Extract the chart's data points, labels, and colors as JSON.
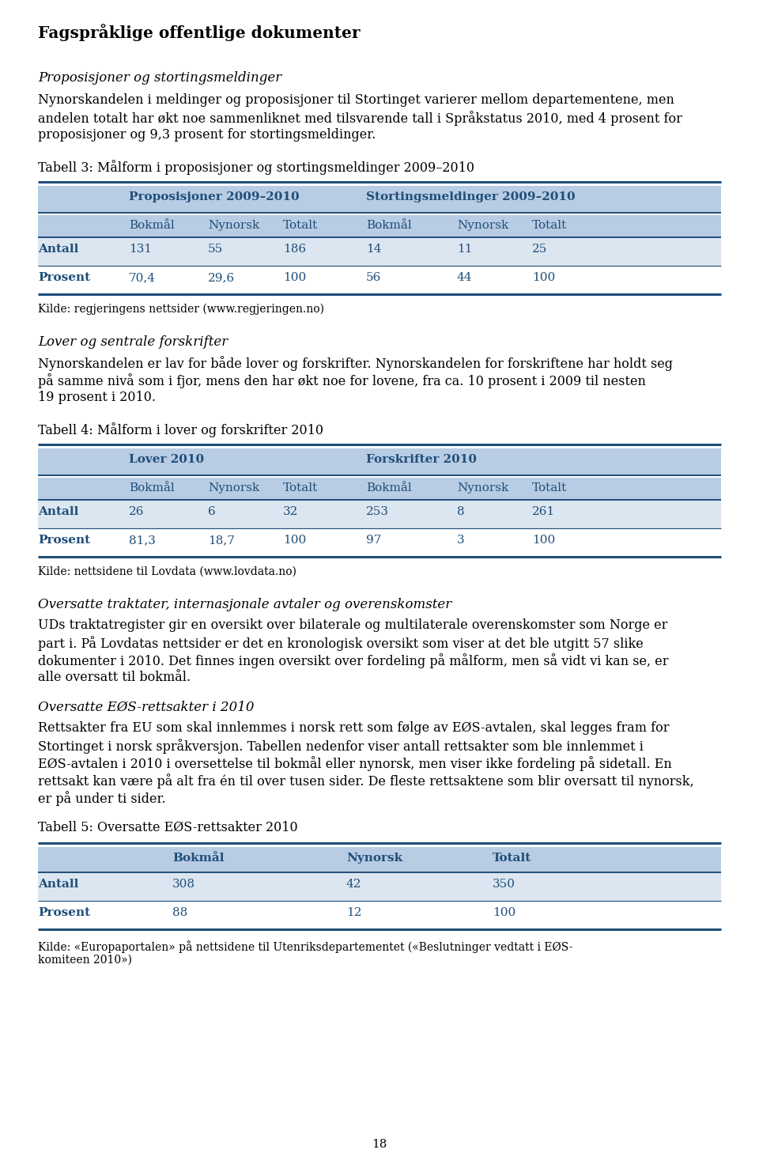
{
  "page_bg": "#ffffff",
  "text_color": "#000000",
  "blue_header": "#1f4e79",
  "blue_text": "#1f4e79",
  "table_header_bg": "#b8cce4",
  "table_row_bg1": "#dce6f1",
  "table_row_bg2": "#ffffff",
  "table_border_color": "#1f4e79",
  "main_title": "Fagspråklige offentlige dokumenter",
  "section1_title": "Proposisjoner og stortingsmeldinger",
  "section1_body": "Nynorskandelen i meldinger og proposisjoner til Stortinget varierer mellom departementene, men\nandelen totalt har økt noe sammenliknet med tilsvarende tall i Språkstatus 2010, med 4 prosent for\nproposisjoner og 9,3 prosent for stortingsmeldinger.",
  "tabell3_title": "Tabell 3: Målform i proposisjoner og stortingsmeldinger 2009–2010",
  "tabell3_col_headers_top": [
    "Proposisjoner 2009–2010",
    "",
    "",
    "Stortingsmeldinger 2009–2010",
    "",
    ""
  ],
  "tabell3_col_headers_sub": [
    "Bokmål",
    "Nynorsk",
    "Totalt",
    "Bokmål",
    "Nynorsk",
    "Totalt"
  ],
  "tabell3_rows": [
    [
      "Antall",
      "131",
      "55",
      "186",
      "14",
      "11",
      "25"
    ],
    [
      "Prosent",
      "70,4",
      "29,6",
      "100",
      "56",
      "44",
      "100"
    ]
  ],
  "tabell3_source": "Kilde: regjeringens nettsider (www.regjeringen.no)",
  "section2_title": "Lover og sentrale forskrifter",
  "section2_body": "Nynorskandelen er lav for både lover og forskrifter. Nynorskandelen for forskriftene har holdt seg\npå samme nivå som i fjor, mens den har økt noe for lovene, fra ca. 10 prosent i 2009 til nesten\n19 prosent i 2010.",
  "tabell4_title": "Tabell 4: Målform i lover og forskrifter 2010",
  "tabell4_col_headers_top": [
    "Lover 2010",
    "",
    "",
    "Forskrifter 2010",
    "",
    ""
  ],
  "tabell4_col_headers_sub": [
    "Bokmål",
    "Nynorsk",
    "Totalt",
    "Bokmål",
    "Nynorsk",
    "Totalt"
  ],
  "tabell4_rows": [
    [
      "Antall",
      "26",
      "6",
      "32",
      "253",
      "8",
      "261"
    ],
    [
      "Prosent",
      "81,3",
      "18,7",
      "100",
      "97",
      "3",
      "100"
    ]
  ],
  "tabell4_source": "Kilde: nettsidene til Lovdata (www.lovdata.no)",
  "section3_title": "Oversatte traktater, internasjonale avtaler og overenskomster",
  "section3_body": "UDs traktatregister gir en oversikt over bilaterale og multilaterale overenskomster som Norge er\npart i. På Lovdatas nettsider er det en kronologisk oversikt som viser at det ble utgitt 57 slike\ndokumenter i 2010. Det finnes ingen oversikt over fordeling på målform, men så vidt vi kan se, er\nalle oversatt til bokmål.",
  "section4_title": "Oversatte EØS-rettsakter i 2010",
  "section4_body": "Rettsakter fra EU som skal innlemmes i norsk rett som følge av EØS-avtalen, skal legges fram for\nStortinget i norsk språkversjon. Tabellen nedenfor viser antall rettsakter som ble innlemmet i\nEØS-avtalen i 2010 i oversettelse til bokmål eller nynorsk, men viser ikke fordeling på sidetall. En\nrettsakt kan være på alt fra én til over tusen sider. De fleste rettsaktene som blir oversatt til nynorsk,\ner på under ti sider.",
  "tabell5_title": "Tabell 5: Oversatte EØS-rettsakter 2010",
  "tabell5_col_headers": [
    "Bokmål",
    "Nynorsk",
    "Totalt"
  ],
  "tabell5_rows": [
    [
      "Antall",
      "308",
      "42",
      "350"
    ],
    [
      "Prosent",
      "88",
      "12",
      "100"
    ]
  ],
  "tabell5_source": "Kilde: «Europaportalen» på nettsidene til Utenriksdepartementet («Beslutninger vedtatt i EØS-\nkomiteen 2010»)",
  "page_number": "18"
}
